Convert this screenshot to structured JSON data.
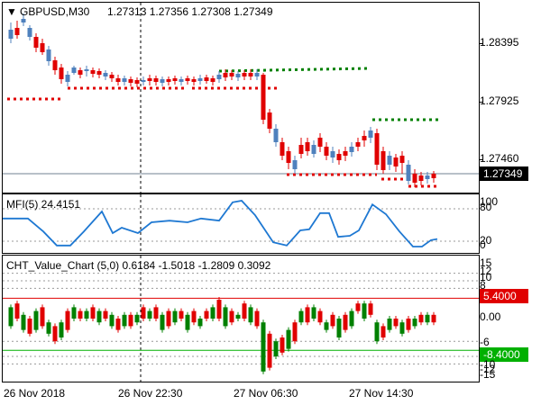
{
  "main": {
    "symbol": "GBPUSD,M30",
    "ohlc": "1.27313 1.27356 1.27308 1.27349",
    "price_levels": [
      "1.28395",
      "1.27925",
      "1.27460"
    ],
    "current_price": "1.27349",
    "colors": {
      "bull": "#4f81bd",
      "bear": "#e00000",
      "resistance": "#008000",
      "support": "#e00000",
      "current": "#708090"
    }
  },
  "mfi": {
    "title": "MFI(5) 24.4151",
    "levels": [
      "100",
      "80",
      "20",
      "0"
    ],
    "color": "#1e78d2",
    "series": [
      {
        "x": 0,
        "v": 62
      },
      {
        "x": 28,
        "v": 62
      },
      {
        "x": 45,
        "v": 38
      },
      {
        "x": 60,
        "v": 12
      },
      {
        "x": 75,
        "v": 12
      },
      {
        "x": 90,
        "v": 38
      },
      {
        "x": 110,
        "v": 75
      },
      {
        "x": 122,
        "v": 35
      },
      {
        "x": 132,
        "v": 45
      },
      {
        "x": 150,
        "v": 35
      },
      {
        "x": 165,
        "v": 55
      },
      {
        "x": 185,
        "v": 58
      },
      {
        "x": 205,
        "v": 55
      },
      {
        "x": 220,
        "v": 62
      },
      {
        "x": 240,
        "v": 58
      },
      {
        "x": 255,
        "v": 92
      },
      {
        "x": 265,
        "v": 95
      },
      {
        "x": 280,
        "v": 68
      },
      {
        "x": 300,
        "v": 18
      },
      {
        "x": 315,
        "v": 12
      },
      {
        "x": 330,
        "v": 40
      },
      {
        "x": 340,
        "v": 42
      },
      {
        "x": 352,
        "v": 72
      },
      {
        "x": 362,
        "v": 72
      },
      {
        "x": 372,
        "v": 28
      },
      {
        "x": 385,
        "v": 30
      },
      {
        "x": 395,
        "v": 40
      },
      {
        "x": 410,
        "v": 88
      },
      {
        "x": 425,
        "v": 70
      },
      {
        "x": 440,
        "v": 38
      },
      {
        "x": 455,
        "v": 10
      },
      {
        "x": 465,
        "v": 10
      },
      {
        "x": 475,
        "v": 22
      },
      {
        "x": 482,
        "v": 24
      }
    ]
  },
  "cht": {
    "title": "CHT_Value_Chart (5,0) 0.6184 -1.5018 -1.2809 0.3092",
    "levels": [
      "15",
      "12",
      "10",
      "8",
      "0.00",
      "-6",
      "-8",
      "-10",
      "-12",
      "-15"
    ],
    "upper_value": "5.4000",
    "lower_value": "-8.4000",
    "colors": {
      "upper": "#e00000",
      "lower": "#008000",
      "bull": "#008000",
      "bear": "#e00000"
    }
  },
  "time_axis": [
    "26 Nov 2018",
    "26 Nov 22:30",
    "27 Nov 06:30",
    "27 Nov 14:30"
  ]
}
